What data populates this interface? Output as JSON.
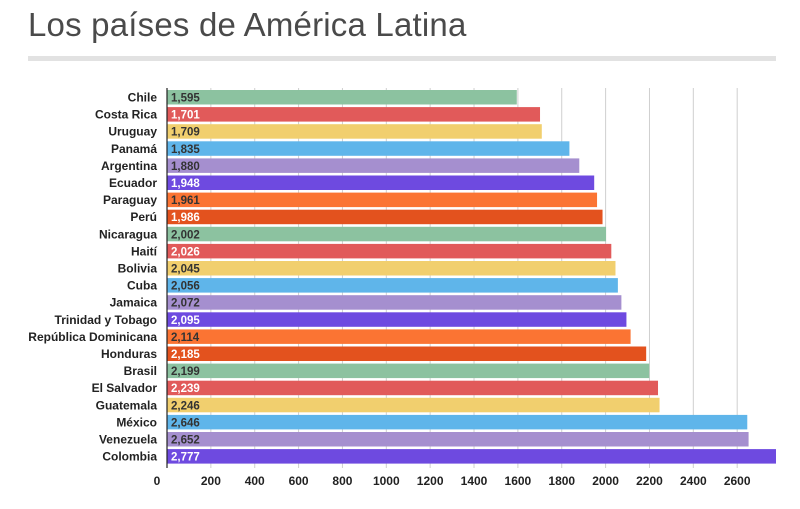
{
  "page": {
    "title": "Los países de América Latina"
  },
  "chart_data": {
    "type": "bar",
    "orientation": "horizontal",
    "title": "Los países de América Latina",
    "xlabel": "",
    "ylabel": "",
    "xlim": [
      0,
      2777
    ],
    "x_ticks": [
      "0",
      "200",
      "400",
      "600",
      "800",
      "1000",
      "1200",
      "1400",
      "1600",
      "1800",
      "2000",
      "2200",
      "2400",
      "2600"
    ],
    "x_tick_values": [
      0,
      200,
      400,
      600,
      800,
      1000,
      1200,
      1400,
      1600,
      1800,
      2000,
      2200,
      2400,
      2600
    ],
    "grid": true,
    "categories": [
      "Chile",
      "Costa Rica",
      "Uruguay",
      "Panamá",
      "Argentina",
      "Ecuador",
      "Paraguay",
      "Perú",
      "Nicaragua",
      "Haití",
      "Bolivia",
      "Cuba",
      "Jamaica",
      "Trinidad y Tobago",
      "República Dominicana",
      "Honduras",
      "Brasil",
      "El Salvador",
      "Guatemala",
      "México",
      "Venezuela",
      "Colombia"
    ],
    "values": [
      1595,
      1701,
      1709,
      1835,
      1880,
      1948,
      1961,
      1986,
      2002,
      2026,
      2045,
      2056,
      2072,
      2095,
      2114,
      2185,
      2199,
      2239,
      2246,
      2646,
      2652,
      2777
    ],
    "value_labels": [
      "1,595",
      "1,701",
      "1,709",
      "1,835",
      "1,880",
      "1,948",
      "1,961",
      "1,986",
      "2,002",
      "2,026",
      "2,045",
      "2,056",
      "2,072",
      "2,095",
      "2,114",
      "2,185",
      "2,199",
      "2,239",
      "2,246",
      "2,646",
      "2,652",
      "2,777"
    ],
    "colors": [
      "#8cc2a0",
      "#e15a5a",
      "#f1cf6e",
      "#5fb5ea",
      "#a58fcf",
      "#6e4ae0",
      "#fb7433",
      "#e3521e",
      "#8cc2a0",
      "#e15a5a",
      "#f1cf6e",
      "#5fb5ea",
      "#a58fcf",
      "#6e4ae0",
      "#fb7433",
      "#e3521e",
      "#8cc2a0",
      "#e15a5a",
      "#f1cf6e",
      "#5fb5ea",
      "#a58fcf",
      "#6e4ae0"
    ],
    "label_colors": [
      "#333333",
      "#ffffff",
      "#333333",
      "#333333",
      "#333333",
      "#ffffff",
      "#333333",
      "#ffffff",
      "#333333",
      "#ffffff",
      "#333333",
      "#333333",
      "#333333",
      "#ffffff",
      "#333333",
      "#ffffff",
      "#333333",
      "#ffffff",
      "#333333",
      "#333333",
      "#333333",
      "#ffffff"
    ]
  }
}
